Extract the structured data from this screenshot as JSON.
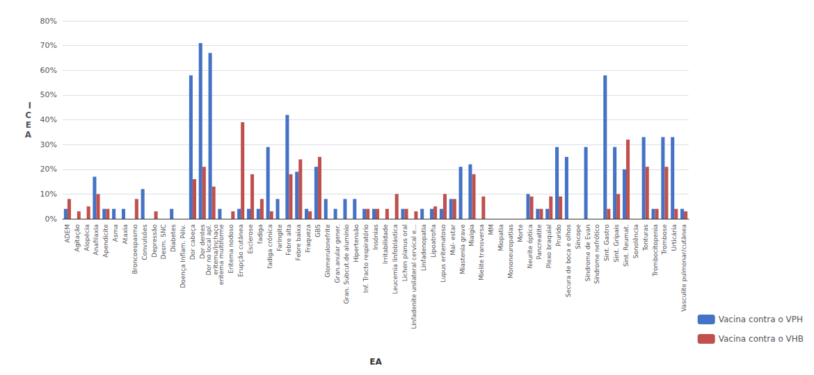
{
  "chart_data": {
    "type": "bar",
    "categories": [
      "ADEM",
      "Agitação",
      "Alopécia",
      "Anafilaxia",
      "Apendicite",
      "Asma",
      "Ataxia",
      "Broncoespasmo",
      "Convulsões",
      "Depressão",
      "Desm. SNC",
      "Diabetes",
      "Doença Inflam. Pélv.",
      "Dor cabeça",
      "Dor dentes",
      "Dor no local apl.\neritema/inchaço",
      "eritema multiforme",
      "Eritema nodoso",
      "Erupção cutânea",
      "Esclerose",
      "fadiga",
      "fadiga crónica",
      "Faringite",
      "Febre alta",
      "Febre baixa",
      "Fraqueza",
      "GBS",
      "Glomerulonefrite",
      "Gran.anular gener.",
      "Gran. Subcut.de alumínio",
      "Hipertensão",
      "Inf. Tracto respiratório",
      "Insónias",
      "Irritabilidade",
      "Leucemia linfoblástica",
      "Lichen planus oral",
      "Linfadenite unilateral cervical e...",
      "Linfadenopatia",
      "Lipoatrofia",
      "Lupus eritematoso",
      "Mal- estar",
      "Miastenia grave",
      "Mialgia",
      "Mielite transversa",
      "MM",
      "Miopatia",
      "Mononeuropatias",
      "Morte",
      "Neurite óptica",
      "Pancreatite",
      "Plexo braquial",
      "Prurido",
      "Secura de boca e olhos",
      "Síncope",
      "Síndrome de Evan",
      "Síndrome nefrótico",
      "Sint. Gastro",
      "Sint. Gripais",
      "Sint. Reumat.",
      "Sonolência",
      "Tonturas",
      "Trombocitopenia",
      "Trombose",
      "Urticária",
      "Vasculite pulmonar/cutânea"
    ],
    "series": [
      {
        "name": "Vacina contra o VPH",
        "color": "#4472C4",
        "values": [
          4,
          0,
          0,
          17,
          4,
          4,
          4,
          0,
          12,
          0,
          0,
          4,
          0,
          58,
          71,
          67,
          4,
          0,
          4,
          4,
          4,
          29,
          8,
          42,
          19,
          4,
          21,
          8,
          4,
          8,
          8,
          4,
          4,
          0,
          0,
          4,
          0,
          4,
          4,
          4,
          8,
          21,
          22,
          0,
          0,
          0,
          0,
          0,
          10,
          4,
          4,
          29,
          25,
          0,
          29,
          0,
          58,
          29,
          20,
          0,
          33,
          4,
          33,
          33,
          4
        ]
      },
      {
        "name": "Vacina contra o VHB",
        "color": "#C0504D",
        "values": [
          8,
          3,
          5,
          10,
          4,
          0,
          0,
          8,
          0,
          3,
          0,
          0,
          0,
          16,
          21,
          13,
          0,
          3,
          39,
          18,
          8,
          3,
          0,
          18,
          24,
          3,
          25,
          0,
          0,
          0,
          0,
          4,
          4,
          4,
          10,
          4,
          3,
          0,
          5,
          10,
          8,
          0,
          18,
          9,
          0,
          0,
          0,
          0,
          9,
          4,
          9,
          9,
          0,
          0,
          0,
          0,
          4,
          10,
          32,
          0,
          21,
          4,
          21,
          4,
          3
        ]
      }
    ],
    "xlabel": "EA",
    "ylabel": "I\nC\nE\nA",
    "ylim": [
      0,
      80
    ],
    "yticks": [
      {
        "value": 0,
        "label": "0%"
      },
      {
        "value": 10,
        "label": "10%"
      },
      {
        "value": 20,
        "label": "20%"
      },
      {
        "value": 30,
        "label": "30%"
      },
      {
        "value": 40,
        "label": "40%"
      },
      {
        "value": 50,
        "label": "50%"
      },
      {
        "value": 60,
        "label": "60%"
      },
      {
        "value": 70,
        "label": "70%"
      },
      {
        "value": 80,
        "label": "80%"
      }
    ],
    "grid": true,
    "legend": "lower right"
  }
}
